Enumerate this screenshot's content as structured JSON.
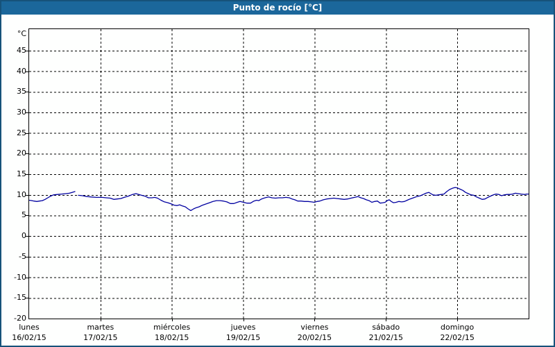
{
  "window": {
    "title": "Punto de rocío [°C]"
  },
  "colors": {
    "titlebar_bg": "#1b679b",
    "titlebar_text": "#ffffff",
    "frame_border": "#16527a",
    "plot_border": "#000000",
    "grid": "#000000",
    "series_line": "#0000a0",
    "background": "#fefffe",
    "label_text": "#000000"
  },
  "chart_data": {
    "type": "line",
    "title": "Punto de rocío [°C]",
    "xlabel": "",
    "ylabel": "°C",
    "ylim": [
      -20,
      50.2
    ],
    "yticks": [
      45,
      40,
      35,
      30,
      25,
      20,
      15,
      10,
      5,
      0,
      -5,
      -10,
      -15,
      -20
    ],
    "grid": true,
    "legend": "none",
    "x_days_total": 7,
    "x_ticks": [
      {
        "name": "lunes",
        "date": "16/02/15"
      },
      {
        "name": "martes",
        "date": "17/02/15"
      },
      {
        "name": "miércoles",
        "date": "18/02/15"
      },
      {
        "name": "jueves",
        "date": "19/02/15"
      },
      {
        "name": "viernes",
        "date": "20/02/15"
      },
      {
        "name": "sábado",
        "date": "21/02/15"
      },
      {
        "name": "domingo",
        "date": "22/02/15"
      }
    ],
    "series": [
      {
        "name": "Punto de rocío",
        "color": "#0000a0",
        "units": "°C",
        "segments": [
          {
            "x_days": [
              0.0,
              0.039,
              0.068,
              0.107,
              0.146,
              0.185,
              0.224,
              0.262,
              0.301,
              0.34,
              0.399,
              0.457,
              0.515,
              0.564,
              0.603,
              0.642
            ],
            "values": [
              8.7,
              8.6,
              8.5,
              8.4,
              8.5,
              8.6,
              8.9,
              9.3,
              9.7,
              10.0,
              10.1,
              10.2,
              10.3,
              10.4,
              10.6,
              10.8
            ]
          },
          {
            "x_days": [
              0.69,
              0.749,
              0.807,
              0.865,
              0.943,
              1.021,
              1.079,
              1.137,
              1.186,
              1.235,
              1.283,
              1.332,
              1.39,
              1.449,
              1.497,
              1.536,
              1.575,
              1.624,
              1.672,
              1.721,
              1.76,
              1.799,
              1.847,
              1.896,
              1.944,
              1.993,
              2.032,
              2.071,
              2.11,
              2.149,
              2.188,
              2.227,
              2.265,
              2.304,
              2.343,
              2.382,
              2.431,
              2.479,
              2.528,
              2.577,
              2.625,
              2.674,
              2.722,
              2.771,
              2.82,
              2.868,
              2.917,
              2.956,
              3.004,
              3.053,
              3.102,
              3.15,
              3.189,
              3.218,
              3.257,
              3.306,
              3.354,
              3.403,
              3.452,
              3.5,
              3.549,
              3.597,
              3.646,
              3.685,
              3.724,
              3.763,
              3.811,
              3.86,
              3.909,
              3.957,
              3.996,
              4.035,
              4.074,
              4.122,
              4.171,
              4.22,
              4.268,
              4.317,
              4.366,
              4.414,
              4.463,
              4.511,
              4.56,
              4.609,
              4.648,
              4.687,
              4.725,
              4.764,
              4.803,
              4.842,
              4.881,
              4.92,
              4.959,
              4.988,
              5.017,
              5.046,
              5.075,
              5.105,
              5.143,
              5.182,
              5.221,
              5.26,
              5.299,
              5.338,
              5.386,
              5.435,
              5.484,
              5.523,
              5.561,
              5.6,
              5.63,
              5.659,
              5.698,
              5.736,
              5.775,
              5.814,
              5.853,
              5.892,
              5.931,
              5.97,
              5.999,
              6.038,
              6.077,
              6.115,
              6.154,
              6.193,
              6.232,
              6.271,
              6.31,
              6.349,
              6.388,
              6.427,
              6.465,
              6.504,
              6.543,
              6.582,
              6.621,
              6.66,
              6.699,
              6.738,
              6.776,
              6.815,
              6.854,
              6.893,
              6.942,
              6.971,
              7.0
            ],
            "values": [
              9.9,
              9.8,
              9.6,
              9.5,
              9.4,
              9.4,
              9.3,
              9.2,
              8.9,
              9.0,
              9.1,
              9.4,
              9.7,
              10.1,
              10.3,
              10.1,
              9.9,
              9.7,
              9.3,
              9.3,
              9.4,
              9.2,
              8.7,
              8.3,
              8.1,
              7.8,
              7.5,
              7.4,
              7.6,
              7.3,
              7.1,
              6.6,
              6.2,
              6.6,
              6.9,
              7.1,
              7.5,
              7.8,
              8.1,
              8.4,
              8.6,
              8.6,
              8.5,
              8.3,
              7.9,
              7.9,
              8.2,
              8.4,
              8.2,
              8.0,
              8.0,
              8.5,
              8.7,
              8.6,
              9.0,
              9.3,
              9.5,
              9.3,
              9.2,
              9.3,
              9.3,
              9.4,
              9.3,
              9.0,
              8.8,
              8.5,
              8.5,
              8.4,
              8.4,
              8.3,
              8.2,
              8.4,
              8.5,
              8.8,
              9.0,
              9.1,
              9.2,
              9.1,
              9.0,
              8.9,
              9.0,
              9.2,
              9.4,
              9.6,
              9.3,
              9.1,
              8.8,
              8.6,
              8.2,
              8.4,
              8.5,
              8.0,
              8.1,
              8.2,
              8.6,
              8.8,
              8.4,
              8.1,
              8.2,
              8.4,
              8.3,
              8.4,
              8.7,
              9.0,
              9.3,
              9.6,
              9.8,
              10.1,
              10.4,
              10.6,
              10.3,
              10.0,
              9.9,
              10.0,
              10.1,
              10.2,
              10.8,
              11.3,
              11.6,
              11.8,
              11.7,
              11.4,
              11.1,
              10.6,
              10.3,
              10.0,
              9.9,
              9.5,
              9.2,
              8.9,
              9.0,
              9.4,
              9.7,
              10.0,
              10.2,
              10.1,
              9.8,
              10.0,
              10.1,
              10.1,
              10.2,
              10.4,
              10.3,
              10.2,
              10.1,
              10.2,
              10.2
            ]
          }
        ]
      }
    ]
  }
}
